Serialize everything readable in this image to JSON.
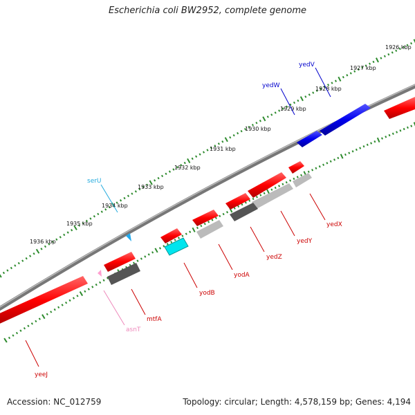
{
  "title": "Escherichia coli BW2952, complete genome",
  "footer": {
    "accession": "Accession: NC_012759",
    "summary": "Topology: circular; Length: 4,578,159 bp; Genes: 4,194"
  },
  "colors": {
    "forward_gene": "#ff0000",
    "blue_gene": "#0000ee",
    "trna_cyan": "#00e5ee",
    "trna_pink": "#ff9fd0",
    "tick_green": "#2e8b2e",
    "backbone": "#888888"
  },
  "scale_labels": [
    "1926 kbp",
    "1927 kbp",
    "1928 kbp",
    "1929 kbp",
    "1930 kbp",
    "1931 kbp",
    "1932 kbp",
    "1933 kbp",
    "1934 kbp",
    "1935 kbp",
    "1936 kbp"
  ],
  "genes": [
    {
      "name": "yedV",
      "color": "#0000cc"
    },
    {
      "name": "yedW",
      "color": "#0000cc"
    },
    {
      "name": "serU",
      "color": "#22aadd"
    },
    {
      "name": "yedX",
      "color": "#cc0000"
    },
    {
      "name": "yedY",
      "color": "#cc0000"
    },
    {
      "name": "yedZ",
      "color": "#cc0000"
    },
    {
      "name": "yodA",
      "color": "#cc0000"
    },
    {
      "name": "yodB",
      "color": "#cc0000"
    },
    {
      "name": "mtfA",
      "color": "#cc0000"
    },
    {
      "name": "asnT",
      "color": "#ee88bb"
    },
    {
      "name": "yeeJ",
      "color": "#cc0000"
    }
  ]
}
